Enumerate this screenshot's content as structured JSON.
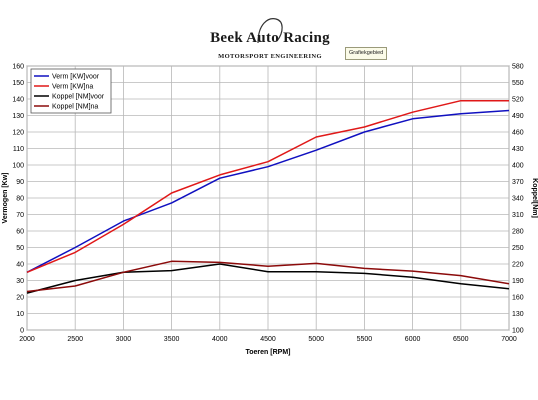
{
  "header": {
    "logo_title": "Beek Auto Racing",
    "logo_subtitle": "MOTORSPORT ENGINEERING",
    "chip_label": "Grafiekgebied"
  },
  "colors": {
    "vermogen_voor": "#1010c0",
    "vermogen_na": "#e01818",
    "koppel_voor": "#000000",
    "koppel_na": "#8b0a0a",
    "grid": "#b8b8b8",
    "plot_background": "#ffffff"
  },
  "chart_data": {
    "type": "line",
    "title": "",
    "xlabel": "Toeren [RPM]",
    "ylabel": "Vermogen [Kw]",
    "y2label": "Koppel[Nm]",
    "xlim": [
      2000,
      7000
    ],
    "ylim": [
      0,
      160
    ],
    "y2lim": [
      100,
      580
    ],
    "x_ticks": [
      2000,
      2500,
      3000,
      3500,
      4000,
      4500,
      5000,
      5500,
      6000,
      6500,
      7000
    ],
    "y_ticks": [
      0,
      10,
      20,
      30,
      40,
      50,
      60,
      70,
      80,
      90,
      100,
      110,
      120,
      130,
      140,
      150,
      160
    ],
    "y2_ticks": [
      100,
      130,
      160,
      190,
      220,
      250,
      280,
      310,
      340,
      370,
      400,
      430,
      460,
      490,
      520,
      550,
      580
    ],
    "grid": true,
    "legend_position": "top-left",
    "x": [
      2000,
      2500,
      3000,
      3500,
      4000,
      4500,
      5000,
      5500,
      6000,
      6500,
      7000
    ],
    "series": [
      {
        "name": "Verm [KW]voor",
        "axis": "left",
        "values": [
          35,
          50,
          66,
          77,
          92,
          99,
          109,
          120,
          128,
          131,
          133
        ]
      },
      {
        "name": "Verm [KW]na",
        "axis": "left",
        "values": [
          35,
          47,
          64,
          83,
          94,
          102,
          117,
          123,
          132,
          139,
          139
        ]
      },
      {
        "name": "Koppel [NM]voor",
        "axis": "right",
        "values": [
          167,
          190,
          205,
          208,
          220,
          206,
          206,
          203,
          196,
          184,
          175
        ]
      },
      {
        "name": "Koppel [NM]na",
        "axis": "right",
        "values": [
          170,
          180,
          205,
          225,
          223,
          216,
          221,
          212,
          207,
          199,
          184
        ]
      }
    ]
  }
}
